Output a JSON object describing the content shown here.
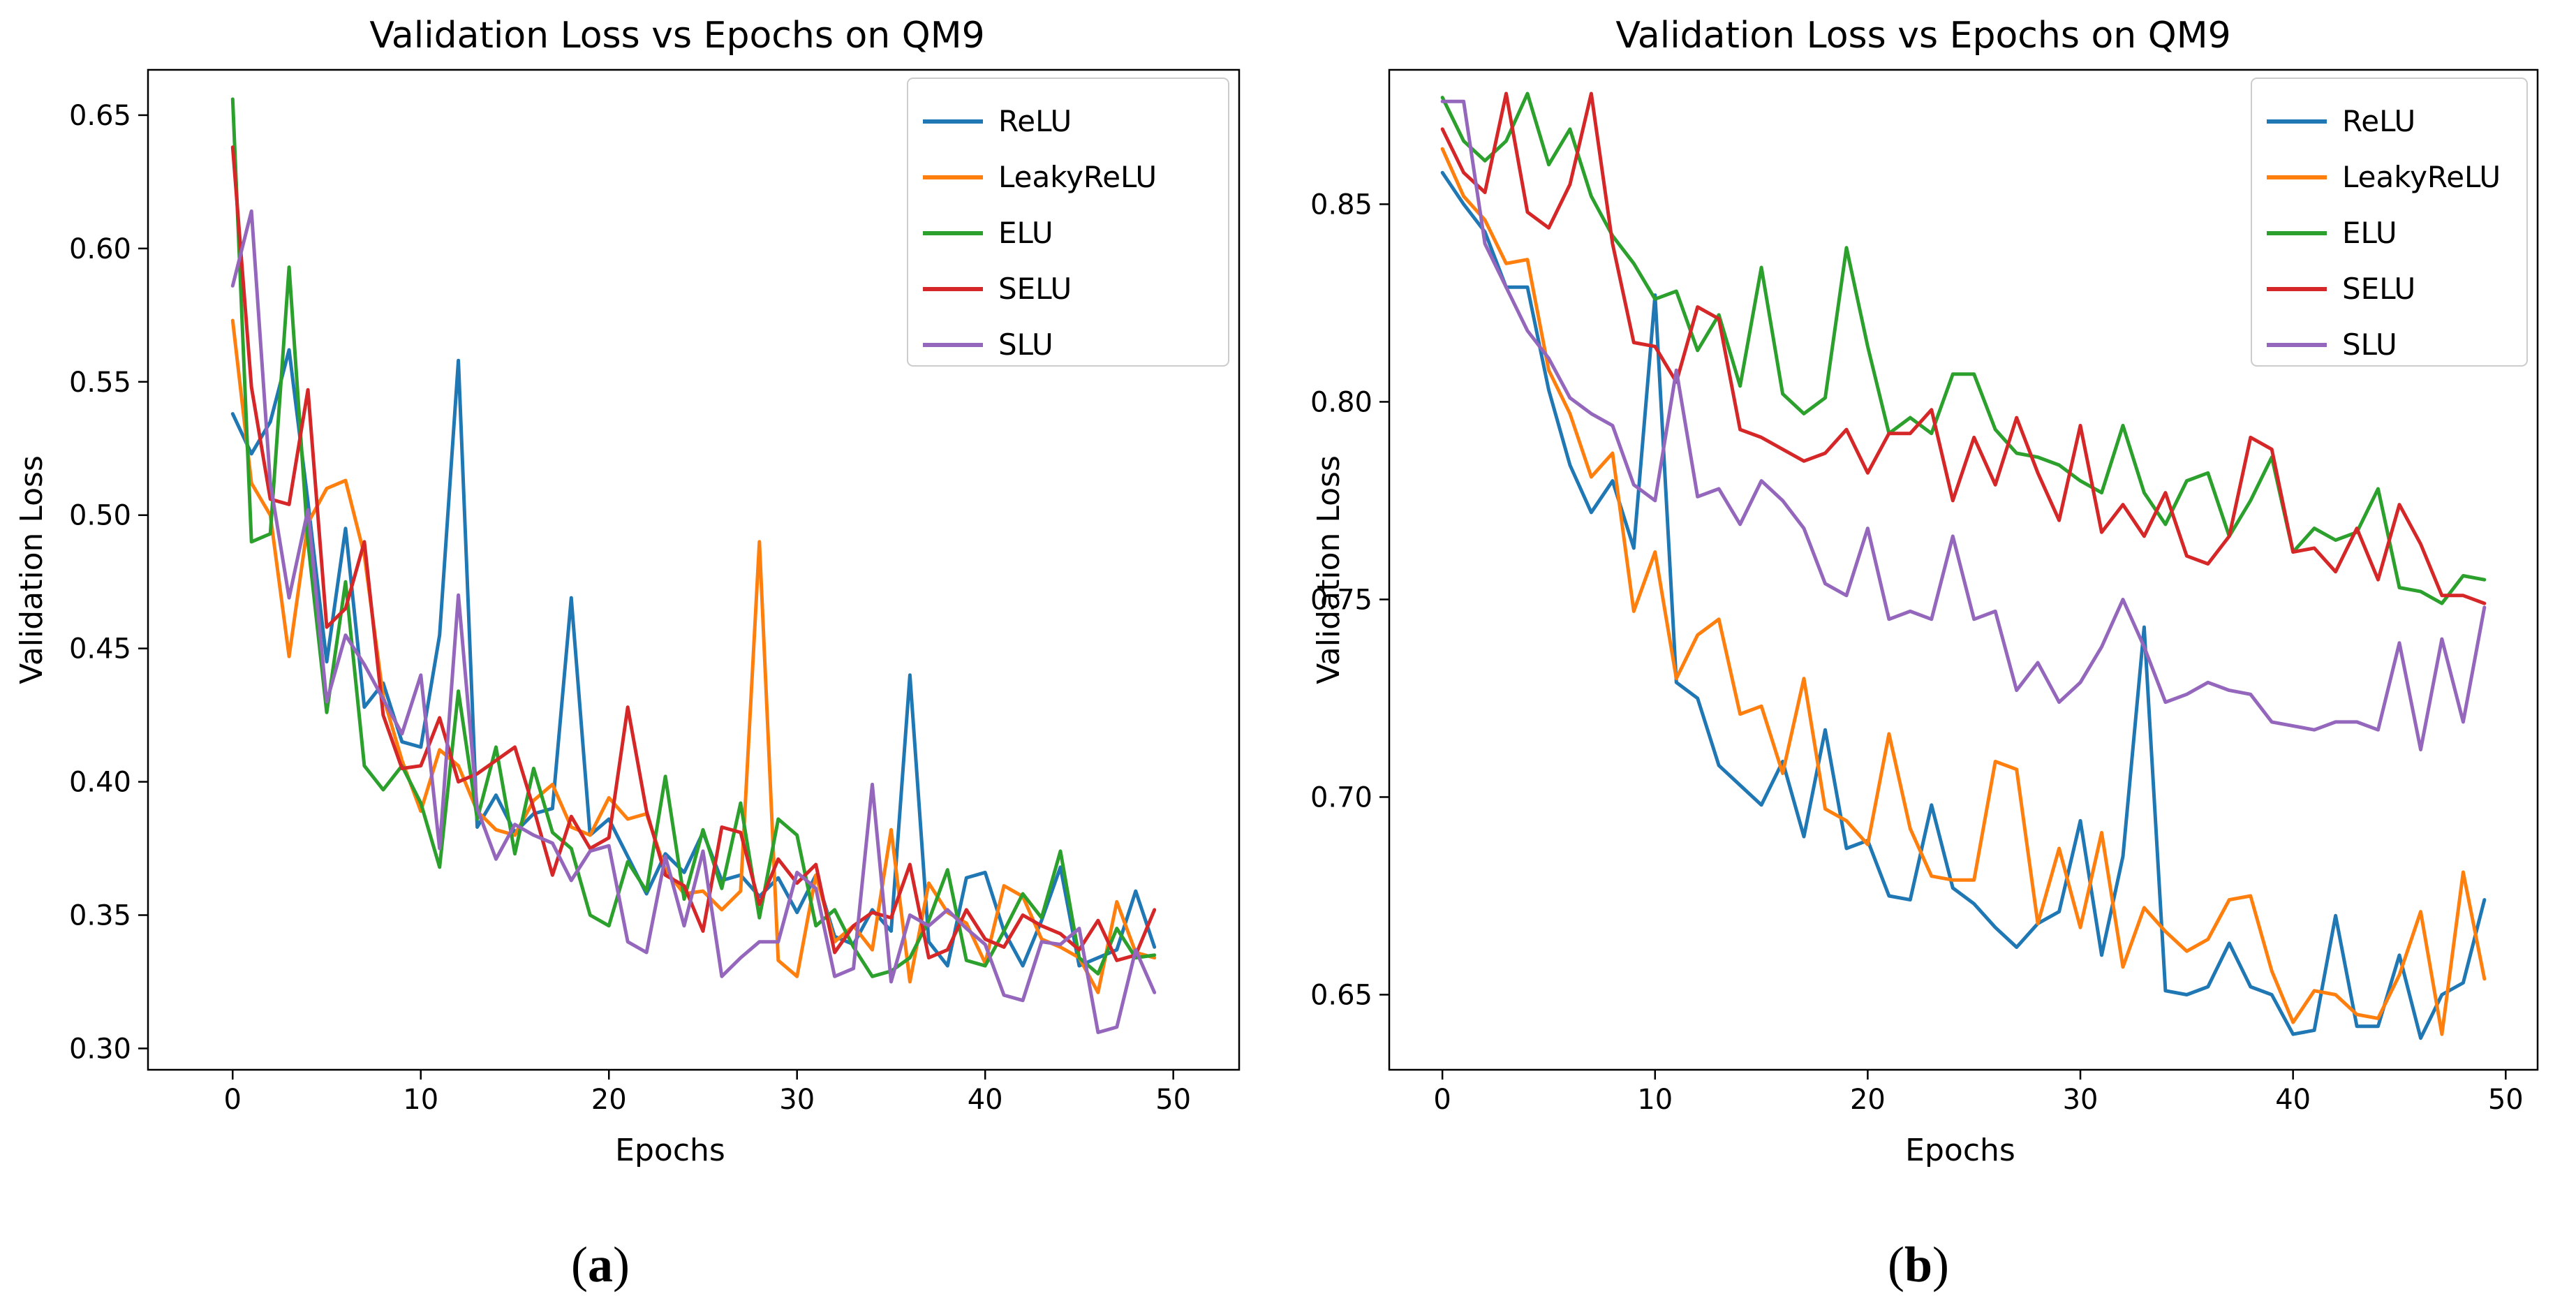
{
  "colors": {
    "ReLU": "#1f77b4",
    "LeakyReLU": "#ff7f0e",
    "ELU": "#2ca02c",
    "SELU": "#d62728",
    "SLU": "#9467bd"
  },
  "captions": [
    {
      "open": "(",
      "letter": "a",
      "close": ")"
    },
    {
      "open": "(",
      "letter": "b",
      "close": ")"
    }
  ],
  "chart_data": [
    {
      "type": "line",
      "title": "Validation Loss vs Epochs on QM9",
      "xlabel": "Epochs",
      "ylabel": "Validation Loss",
      "xlim": [
        -4.5,
        53.5
      ],
      "ylim": [
        0.292,
        0.667
      ],
      "xticks": [
        0,
        10,
        20,
        30,
        40,
        50
      ],
      "yticks": [
        0.3,
        0.35,
        0.4,
        0.45,
        0.5,
        0.55,
        0.6,
        0.65
      ],
      "ytick_labels": [
        "0.30",
        "0.35",
        "0.40",
        "0.45",
        "0.50",
        "0.55",
        "0.60",
        "0.65"
      ],
      "legend_position": "top-right",
      "x": [
        0,
        1,
        2,
        3,
        4,
        5,
        6,
        7,
        8,
        9,
        10,
        11,
        12,
        13,
        14,
        15,
        16,
        17,
        18,
        19,
        20,
        21,
        22,
        23,
        24,
        25,
        26,
        27,
        28,
        29,
        30,
        31,
        32,
        33,
        34,
        35,
        36,
        37,
        38,
        39,
        40,
        41,
        42,
        43,
        44,
        45,
        46,
        47,
        48,
        49
      ],
      "series": [
        {
          "name": "ReLU",
          "values": [
            0.538,
            0.523,
            0.535,
            0.562,
            0.505,
            0.445,
            0.495,
            0.428,
            0.437,
            0.415,
            0.413,
            0.455,
            0.558,
            0.383,
            0.395,
            0.381,
            0.388,
            0.39,
            0.469,
            0.38,
            0.386,
            0.372,
            0.358,
            0.373,
            0.366,
            0.381,
            0.363,
            0.365,
            0.357,
            0.364,
            0.351,
            0.365,
            0.342,
            0.339,
            0.352,
            0.344,
            0.44,
            0.34,
            0.331,
            0.364,
            0.366,
            0.344,
            0.331,
            0.348,
            0.368,
            0.331,
            0.334,
            0.337,
            0.359,
            0.338
          ]
        },
        {
          "name": "LeakyReLU",
          "values": [
            0.573,
            0.512,
            0.5,
            0.447,
            0.497,
            0.51,
            0.513,
            0.485,
            0.432,
            0.408,
            0.389,
            0.412,
            0.406,
            0.389,
            0.382,
            0.38,
            0.393,
            0.399,
            0.383,
            0.38,
            0.394,
            0.386,
            0.388,
            0.367,
            0.358,
            0.359,
            0.352,
            0.359,
            0.49,
            0.333,
            0.327,
            0.365,
            0.34,
            0.346,
            0.337,
            0.382,
            0.325,
            0.362,
            0.351,
            0.347,
            0.332,
            0.361,
            0.357,
            0.341,
            0.338,
            0.334,
            0.321,
            0.355,
            0.336,
            0.334
          ]
        },
        {
          "name": "ELU",
          "values": [
            0.656,
            0.49,
            0.493,
            0.593,
            0.49,
            0.426,
            0.475,
            0.406,
            0.397,
            0.406,
            0.392,
            0.368,
            0.434,
            0.386,
            0.413,
            0.373,
            0.405,
            0.381,
            0.375,
            0.35,
            0.346,
            0.37,
            0.359,
            0.402,
            0.356,
            0.382,
            0.36,
            0.392,
            0.349,
            0.386,
            0.38,
            0.346,
            0.352,
            0.338,
            0.327,
            0.329,
            0.334,
            0.348,
            0.367,
            0.333,
            0.331,
            0.344,
            0.358,
            0.349,
            0.374,
            0.334,
            0.328,
            0.345,
            0.334,
            0.335
          ]
        },
        {
          "name": "SELU",
          "values": [
            0.638,
            0.548,
            0.506,
            0.504,
            0.547,
            0.458,
            0.465,
            0.49,
            0.425,
            0.405,
            0.406,
            0.424,
            0.4,
            0.403,
            0.408,
            0.413,
            0.39,
            0.365,
            0.387,
            0.375,
            0.379,
            0.428,
            0.389,
            0.365,
            0.361,
            0.344,
            0.383,
            0.381,
            0.354,
            0.371,
            0.362,
            0.369,
            0.336,
            0.346,
            0.351,
            0.349,
            0.369,
            0.334,
            0.337,
            0.352,
            0.341,
            0.338,
            0.35,
            0.346,
            0.343,
            0.337,
            0.348,
            0.333,
            0.335,
            0.352
          ]
        },
        {
          "name": "SLU",
          "values": [
            0.586,
            0.614,
            0.512,
            0.469,
            0.502,
            0.43,
            0.455,
            0.444,
            0.431,
            0.418,
            0.44,
            0.375,
            0.47,
            0.39,
            0.371,
            0.384,
            0.38,
            0.377,
            0.363,
            0.374,
            0.376,
            0.34,
            0.336,
            0.372,
            0.346,
            0.374,
            0.327,
            0.334,
            0.34,
            0.34,
            0.366,
            0.36,
            0.327,
            0.33,
            0.399,
            0.325,
            0.35,
            0.346,
            0.352,
            0.345,
            0.339,
            0.32,
            0.318,
            0.34,
            0.339,
            0.345,
            0.306,
            0.308,
            0.337,
            0.321
          ]
        }
      ]
    },
    {
      "type": "line",
      "title": "Validation Loss vs Epochs on QM9",
      "xlabel": "Epochs",
      "ylabel": "Validation Loss",
      "xlim": [
        -2.5,
        51.5
      ],
      "ylim": [
        0.631,
        0.884
      ],
      "xticks": [
        0,
        10,
        20,
        30,
        40,
        50
      ],
      "yticks": [
        0.65,
        0.7,
        0.75,
        0.8,
        0.85
      ],
      "ytick_labels": [
        "0.65",
        "0.70",
        "0.75",
        "0.80",
        "0.85"
      ],
      "legend_position": "top-right",
      "x": [
        0,
        1,
        2,
        3,
        4,
        5,
        6,
        7,
        8,
        9,
        10,
        11,
        12,
        13,
        14,
        15,
        16,
        17,
        18,
        19,
        20,
        21,
        22,
        23,
        24,
        25,
        26,
        27,
        28,
        29,
        30,
        31,
        32,
        33,
        34,
        35,
        36,
        37,
        38,
        39,
        40,
        41,
        42,
        43,
        44,
        45,
        46,
        47,
        48,
        49
      ],
      "series": [
        {
          "name": "ReLU",
          "values": [
            0.858,
            0.85,
            0.843,
            0.829,
            0.829,
            0.803,
            0.784,
            0.772,
            0.78,
            0.763,
            0.827,
            0.729,
            0.725,
            0.708,
            0.703,
            0.698,
            0.709,
            0.69,
            0.717,
            0.687,
            0.689,
            0.675,
            0.674,
            0.698,
            0.677,
            0.673,
            0.667,
            0.662,
            0.668,
            0.671,
            0.694,
            0.66,
            0.685,
            0.743,
            0.651,
            0.65,
            0.652,
            0.663,
            0.652,
            0.65,
            0.64,
            0.641,
            0.67,
            0.642,
            0.642,
            0.66,
            0.639,
            0.65,
            0.653,
            0.674
          ]
        },
        {
          "name": "LeakyReLU",
          "values": [
            0.864,
            0.852,
            0.846,
            0.835,
            0.836,
            0.808,
            0.797,
            0.781,
            0.787,
            0.747,
            0.762,
            0.73,
            0.741,
            0.745,
            0.721,
            0.723,
            0.706,
            0.73,
            0.697,
            0.694,
            0.688,
            0.716,
            0.692,
            0.68,
            0.679,
            0.679,
            0.709,
            0.707,
            0.668,
            0.687,
            0.667,
            0.691,
            0.657,
            0.672,
            0.666,
            0.661,
            0.664,
            0.674,
            0.675,
            0.656,
            0.643,
            0.651,
            0.65,
            0.645,
            0.644,
            0.655,
            0.671,
            0.64,
            0.681,
            0.654
          ]
        },
        {
          "name": "ELU",
          "values": [
            0.877,
            0.866,
            0.861,
            0.866,
            0.878,
            0.86,
            0.869,
            0.852,
            0.842,
            0.835,
            0.826,
            0.828,
            0.813,
            0.822,
            0.804,
            0.834,
            0.802,
            0.797,
            0.801,
            0.839,
            0.814,
            0.792,
            0.796,
            0.792,
            0.807,
            0.807,
            0.793,
            0.787,
            0.786,
            0.784,
            0.78,
            0.777,
            0.794,
            0.777,
            0.769,
            0.78,
            0.782,
            0.766,
            0.775,
            0.786,
            0.762,
            0.768,
            0.765,
            0.767,
            0.778,
            0.753,
            0.752,
            0.749,
            0.756,
            0.755
          ]
        },
        {
          "name": "SELU",
          "values": [
            0.869,
            0.858,
            0.853,
            0.878,
            0.848,
            0.844,
            0.855,
            0.878,
            0.84,
            0.815,
            0.814,
            0.805,
            0.824,
            0.821,
            0.793,
            0.791,
            0.788,
            0.785,
            0.787,
            0.793,
            0.782,
            0.792,
            0.792,
            0.798,
            0.775,
            0.791,
            0.779,
            0.796,
            0.782,
            0.77,
            0.794,
            0.767,
            0.774,
            0.766,
            0.777,
            0.761,
            0.759,
            0.766,
            0.791,
            0.788,
            0.762,
            0.763,
            0.757,
            0.768,
            0.755,
            0.774,
            0.764,
            0.751,
            0.751,
            0.749
          ]
        },
        {
          "name": "SLU",
          "values": [
            0.876,
            0.876,
            0.84,
            0.829,
            0.818,
            0.811,
            0.801,
            0.797,
            0.794,
            0.779,
            0.775,
            0.808,
            0.776,
            0.778,
            0.769,
            0.78,
            0.775,
            0.768,
            0.754,
            0.751,
            0.768,
            0.745,
            0.747,
            0.745,
            0.766,
            0.745,
            0.747,
            0.727,
            0.734,
            0.724,
            0.729,
            0.738,
            0.75,
            0.738,
            0.724,
            0.726,
            0.729,
            0.727,
            0.726,
            0.719,
            0.718,
            0.717,
            0.719,
            0.719,
            0.717,
            0.739,
            0.712,
            0.74,
            0.719,
            0.748
          ]
        }
      ]
    }
  ]
}
